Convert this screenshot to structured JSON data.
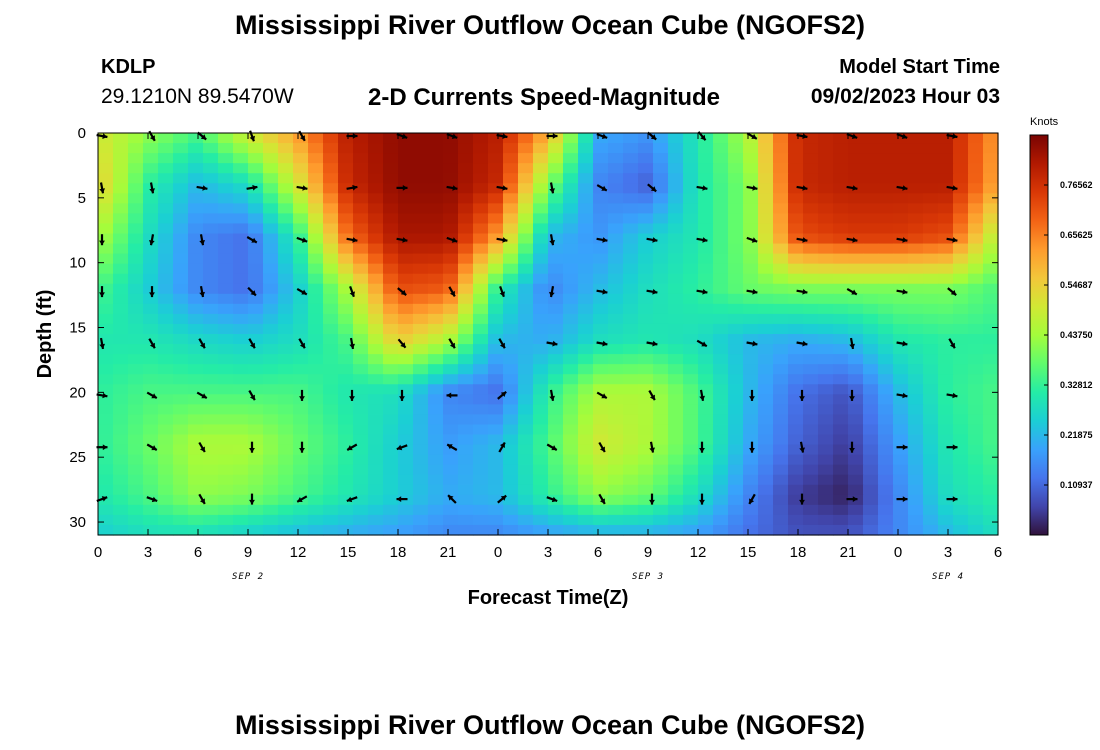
{
  "header": {
    "title": "Mississippi River Outflow Ocean Cube (NGOFS2)",
    "station_id": "KDLP",
    "station_coords": "29.1210N  89.5470W",
    "subtitle": "2-D Currents Speed-Magnitude",
    "model_start_label": "Model Start Time",
    "model_start_value": "09/02/2023 Hour 03"
  },
  "footer": {
    "title_repeat": "Mississippi River Outflow Ocean Cube (NGOFS2)"
  },
  "chart_data": {
    "type": "heatmap",
    "xlabel": "Forecast Time(Z)",
    "ylabel": "Depth (ft)",
    "x_ticks": [
      "0",
      "3",
      "6",
      "9",
      "12",
      "15",
      "18",
      "21",
      "0",
      "3",
      "6",
      "9",
      "12",
      "15",
      "18",
      "21",
      "0",
      "3",
      "6"
    ],
    "date_labels": [
      {
        "label": "SEP 2",
        "hour": 9
      },
      {
        "label": "SEP 3",
        "hour": 33
      },
      {
        "label": "SEP 4",
        "hour": 51
      }
    ],
    "x_range_hours": [
      0,
      54
    ],
    "y_ticks": [
      0,
      5,
      10,
      15,
      20,
      25,
      30
    ],
    "ylim": [
      0,
      31
    ],
    "y_inverted": true,
    "colorbar": {
      "unit": "Knots",
      "range": [
        0,
        0.875
      ],
      "tick_labels": [
        "0.76562",
        "0.65625",
        "0.54687",
        "0.43750",
        "0.32812",
        "0.21875",
        "0.10937"
      ],
      "tick_values": [
        0.76562,
        0.65625,
        0.54687,
        0.4375,
        0.32812,
        0.21875,
        0.10937
      ],
      "colormap": [
        "#30123b",
        "#4145ab",
        "#4675ed",
        "#39a2fc",
        "#1bcfd4",
        "#24eca6",
        "#61fc6c",
        "#a4fc3b",
        "#d1e834",
        "#f3c63a",
        "#fe9b2d",
        "#f36315",
        "#d93806",
        "#b11901",
        "#7a0402"
      ]
    },
    "speed_grid": {
      "hours": [
        0,
        3,
        6,
        9,
        12,
        15,
        18,
        21,
        24,
        27,
        30,
        33,
        36,
        39,
        42,
        45,
        48,
        51,
        54
      ],
      "depths": [
        0,
        4,
        8,
        12,
        16,
        20,
        24,
        28,
        31
      ],
      "values": [
        [
          0.5,
          0.42,
          0.35,
          0.5,
          0.62,
          0.8,
          0.85,
          0.85,
          0.8,
          0.6,
          0.2,
          0.17,
          0.3,
          0.45,
          0.78,
          0.8,
          0.8,
          0.8,
          0.62
        ],
        [
          0.55,
          0.32,
          0.22,
          0.28,
          0.5,
          0.78,
          0.85,
          0.85,
          0.78,
          0.4,
          0.15,
          0.1,
          0.3,
          0.4,
          0.78,
          0.8,
          0.8,
          0.8,
          0.6
        ],
        [
          0.45,
          0.28,
          0.15,
          0.12,
          0.32,
          0.68,
          0.82,
          0.82,
          0.62,
          0.22,
          0.17,
          0.25,
          0.3,
          0.4,
          0.72,
          0.75,
          0.75,
          0.72,
          0.45
        ],
        [
          0.35,
          0.25,
          0.15,
          0.12,
          0.25,
          0.45,
          0.72,
          0.7,
          0.32,
          0.15,
          0.22,
          0.28,
          0.32,
          0.38,
          0.4,
          0.4,
          0.4,
          0.4,
          0.35
        ],
        [
          0.3,
          0.3,
          0.27,
          0.25,
          0.28,
          0.35,
          0.55,
          0.45,
          0.22,
          0.2,
          0.28,
          0.3,
          0.28,
          0.22,
          0.2,
          0.22,
          0.3,
          0.32,
          0.32
        ],
        [
          0.32,
          0.35,
          0.35,
          0.35,
          0.35,
          0.3,
          0.28,
          0.15,
          0.12,
          0.32,
          0.45,
          0.45,
          0.35,
          0.22,
          0.12,
          0.08,
          0.22,
          0.32,
          0.35
        ],
        [
          0.32,
          0.38,
          0.45,
          0.45,
          0.38,
          0.32,
          0.25,
          0.18,
          0.22,
          0.35,
          0.5,
          0.45,
          0.35,
          0.2,
          0.1,
          0.05,
          0.18,
          0.3,
          0.35
        ],
        [
          0.3,
          0.35,
          0.42,
          0.4,
          0.35,
          0.3,
          0.25,
          0.2,
          0.22,
          0.32,
          0.42,
          0.38,
          0.28,
          0.15,
          0.05,
          0.02,
          0.15,
          0.28,
          0.32
        ],
        [
          0.25,
          0.28,
          0.28,
          0.25,
          0.22,
          0.2,
          0.18,
          0.15,
          0.15,
          0.18,
          0.2,
          0.2,
          0.18,
          0.12,
          0.08,
          0.08,
          0.15,
          0.22,
          0.28
        ]
      ]
    },
    "vectors": {
      "hours": [
        0,
        3,
        6,
        9,
        12,
        15,
        18,
        21,
        24,
        27,
        30,
        33,
        36,
        39,
        42,
        45,
        48,
        51
      ],
      "depths": [
        0,
        4,
        8,
        12,
        16,
        20,
        24,
        28
      ],
      "angles_deg": [
        [
          10,
          60,
          40,
          70,
          60,
          0,
          20,
          20,
          10,
          0,
          20,
          40,
          50,
          30,
          10,
          20,
          20,
          10
        ],
        [
          80,
          80,
          10,
          -10,
          10,
          -10,
          0,
          10,
          10,
          80,
          30,
          40,
          10,
          10,
          10,
          10,
          10,
          10
        ],
        [
          90,
          100,
          80,
          30,
          20,
          10,
          10,
          20,
          10,
          80,
          10,
          10,
          10,
          20,
          10,
          10,
          10,
          10
        ],
        [
          90,
          90,
          80,
          45,
          30,
          70,
          40,
          60,
          70,
          100,
          10,
          10,
          10,
          10,
          10,
          30,
          10,
          40
        ],
        [
          80,
          60,
          60,
          60,
          60,
          80,
          50,
          60,
          60,
          10,
          10,
          10,
          30,
          10,
          10,
          80,
          10,
          60
        ],
        [
          10,
          30,
          30,
          60,
          90,
          90,
          90,
          180,
          -40,
          80,
          30,
          60,
          80,
          90,
          90,
          90,
          10,
          10
        ],
        [
          0,
          30,
          60,
          90,
          90,
          150,
          160,
          210,
          -60,
          30,
          60,
          80,
          90,
          90,
          80,
          90,
          0,
          0
        ],
        [
          -20,
          20,
          60,
          90,
          150,
          160,
          180,
          225,
          -40,
          20,
          60,
          90,
          90,
          120,
          90,
          0,
          0,
          0
        ]
      ]
    }
  }
}
